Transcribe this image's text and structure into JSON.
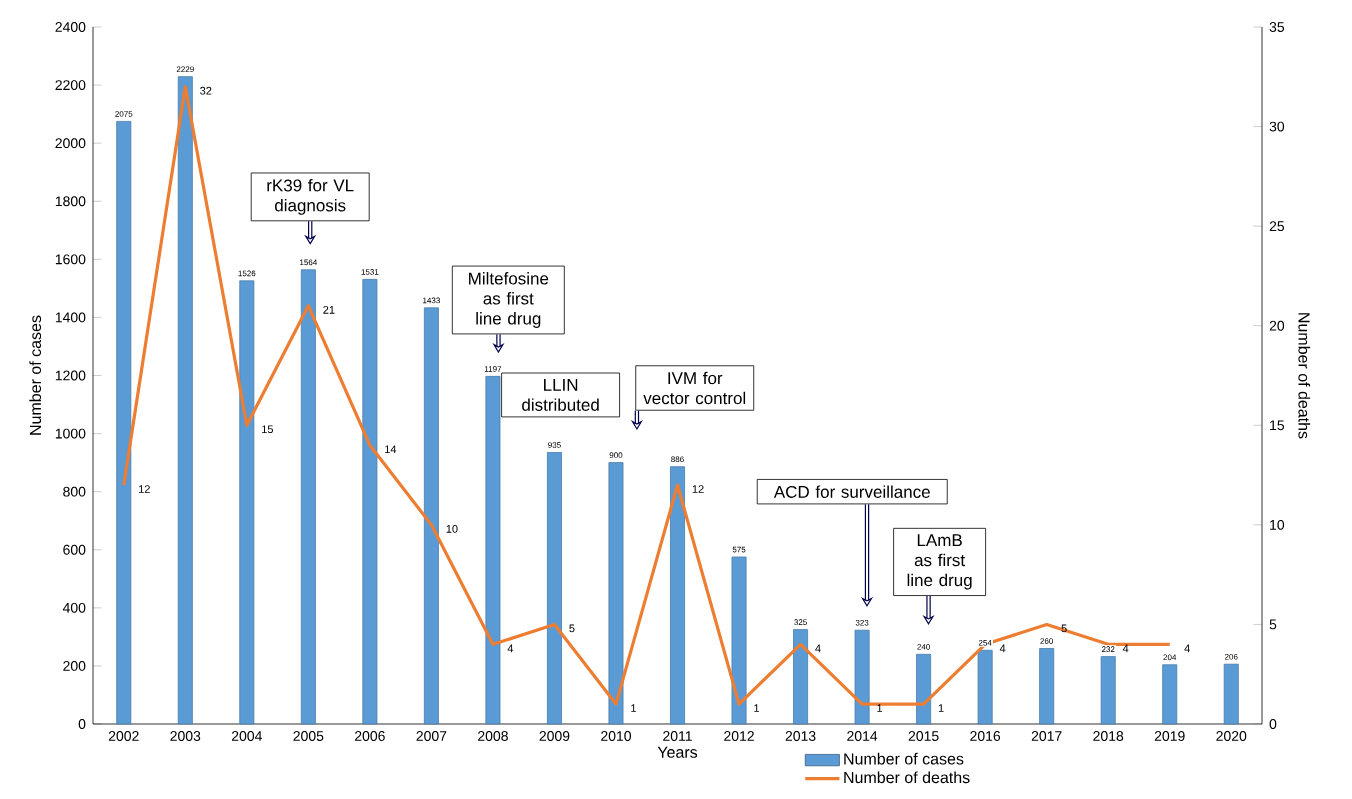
{
  "chart_data": {
    "type": "bar",
    "categories": [
      "2002",
      "2003",
      "2004",
      "2005",
      "2006",
      "2007",
      "2008",
      "2009",
      "2010",
      "2011",
      "2012",
      "2013",
      "2014",
      "2015",
      "2016",
      "2017",
      "2018",
      "2019",
      "2020"
    ],
    "series": [
      {
        "name": "Number of cases",
        "color": "#5b9bd5",
        "values": [
          2075,
          2229,
          1526,
          1564,
          1531,
          1433,
          1197,
          935,
          900,
          886,
          575,
          325,
          323,
          240,
          254,
          260,
          232,
          204,
          206
        ]
      },
      {
        "name": "Number of deaths",
        "type": "line",
        "axis": "y2",
        "color": "#ed7d31",
        "values": [
          12,
          32,
          15,
          21,
          14,
          10,
          4,
          5,
          1,
          12,
          1,
          4,
          1,
          1,
          4,
          5,
          4,
          4,
          null
        ]
      }
    ],
    "xlabel": "Years",
    "ylabel": "Number of cases",
    "y2label": "Number of deaths",
    "ylim": [
      0,
      2400
    ],
    "yticks": [
      0,
      200,
      400,
      600,
      800,
      1000,
      1200,
      1400,
      1600,
      1800,
      2000,
      2200,
      2400
    ],
    "y2lim": [
      0,
      35
    ],
    "y2ticks": [
      0,
      5,
      10,
      15,
      20,
      25,
      30,
      35
    ],
    "data_labels": true,
    "legend": "bottom",
    "annotations": [
      "rK39 for VL diagnosis",
      "Miltefosine as first line drug",
      "LLIN distributed",
      "IVM for vector control",
      "ACD for surveillance",
      "LAmB as first line drug"
    ]
  }
}
